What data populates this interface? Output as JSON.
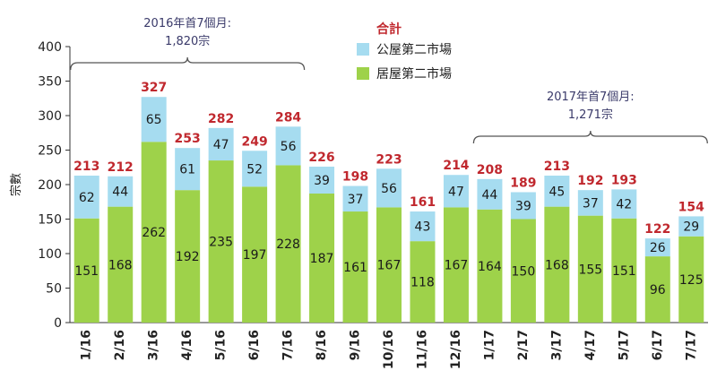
{
  "chart_data": {
    "type": "bar",
    "stacked": true,
    "ylabel": "宗數",
    "ylim": [
      0,
      400
    ],
    "yticks": [
      0,
      50,
      100,
      150,
      200,
      250,
      300,
      350,
      400
    ],
    "categories": [
      "1/16",
      "2/16",
      "3/16",
      "4/16",
      "5/16",
      "6/16",
      "7/16",
      "8/16",
      "9/16",
      "10/16",
      "11/16",
      "12/16",
      "1/17",
      "2/17",
      "3/17",
      "4/17",
      "5/17",
      "6/17",
      "7/17"
    ],
    "series": [
      {
        "name": "居屋第二市場",
        "color": "#9ed24a",
        "values": [
          151,
          168,
          262,
          192,
          235,
          197,
          228,
          187,
          161,
          167,
          118,
          167,
          164,
          150,
          168,
          155,
          151,
          96,
          125
        ]
      },
      {
        "name": "公屋第二市場",
        "color": "#a6dcf0",
        "values": [
          62,
          44,
          65,
          61,
          47,
          52,
          56,
          39,
          37,
          56,
          43,
          47,
          44,
          39,
          45,
          37,
          42,
          26,
          29
        ]
      }
    ],
    "totals": [
      213,
      212,
      327,
      253,
      282,
      249,
      284,
      226,
      198,
      223,
      161,
      214,
      208,
      189,
      213,
      192,
      193,
      122,
      154
    ],
    "total_color": "#c0282e",
    "legend": {
      "title": "合計",
      "position": "top-center"
    },
    "annotations": [
      {
        "line1": "2016年首7個月:",
        "line2": "1,820宗",
        "from_index": 0,
        "to_index": 6
      },
      {
        "line1": "2017年首7個月:",
        "line2": "1,271宗",
        "from_index": 12,
        "to_index": 18
      }
    ]
  }
}
